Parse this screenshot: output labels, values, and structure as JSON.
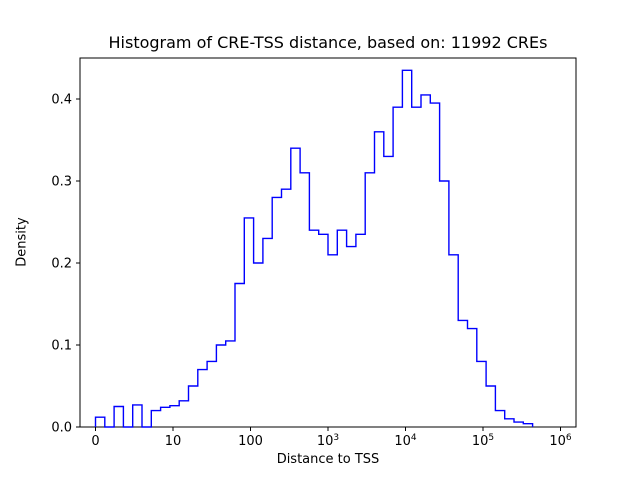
{
  "figure": {
    "background": "#ffffff",
    "axes_color": "#000000"
  },
  "chart_data": {
    "type": "line",
    "subtype": "step-histogram",
    "title": "Histogram of CRE-TSS distance, based on: 11992 CREs",
    "xlabel": "Distance to TSS",
    "ylabel": "Density",
    "n_cres": 11992,
    "line_color": "#0000ff",
    "grid": false,
    "legend": "none",
    "x_axis": {
      "scale": "log-like, u = log10(distance+1)",
      "min_u": -0.2,
      "max_u": 6.2,
      "ticks": [
        {
          "u": 0,
          "label": "0"
        },
        {
          "u": 1,
          "label": "10"
        },
        {
          "u": 2,
          "label": "100"
        },
        {
          "u": 3,
          "label": "10",
          "exp": "3"
        },
        {
          "u": 4,
          "label": "10",
          "exp": "4"
        },
        {
          "u": 5,
          "label": "10",
          "exp": "5"
        },
        {
          "u": 6,
          "label": "10",
          "exp": "6"
        }
      ]
    },
    "y_axis": {
      "min": 0,
      "max": 0.45,
      "ticks": [
        {
          "v": 0.0,
          "label": "0.0"
        },
        {
          "v": 0.1,
          "label": "0.1"
        },
        {
          "v": 0.2,
          "label": "0.2"
        },
        {
          "v": 0.3,
          "label": "0.3"
        },
        {
          "v": 0.4,
          "label": "0.4"
        }
      ]
    },
    "bins": {
      "u_start": 0.0,
      "u_width": 0.12,
      "note": "bin edges are uniform in u = log10(distance+1); densities estimated from plot"
    },
    "densities": [
      0.012,
      0.0,
      0.025,
      0.0,
      0.027,
      0.0,
      0.02,
      0.024,
      0.026,
      0.032,
      0.05,
      0.07,
      0.08,
      0.1,
      0.105,
      0.175,
      0.255,
      0.2,
      0.23,
      0.28,
      0.29,
      0.34,
      0.31,
      0.24,
      0.235,
      0.21,
      0.24,
      0.22,
      0.235,
      0.31,
      0.36,
      0.33,
      0.39,
      0.435,
      0.39,
      0.405,
      0.395,
      0.3,
      0.21,
      0.13,
      0.12,
      0.08,
      0.05,
      0.02,
      0.01,
      0.006,
      0.004
    ]
  }
}
